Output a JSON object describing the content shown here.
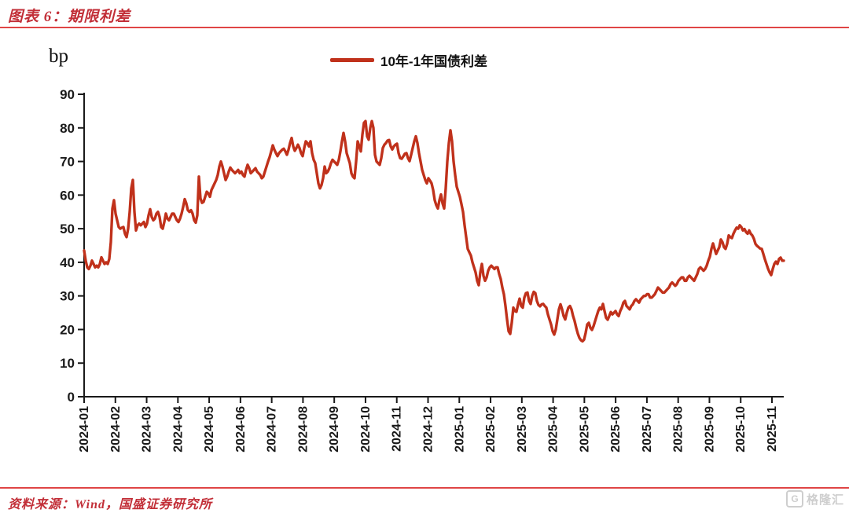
{
  "header": {
    "title": "图表 6：期限利差"
  },
  "legend": {
    "label": "10年-1年国债利差"
  },
  "footer": {
    "source": "资料来源：Wind，国盛证券研究所",
    "watermark_letter": "G",
    "watermark_text": "格隆汇"
  },
  "colors": {
    "line": "#c0311b",
    "accent_rule": "#e04545",
    "title_red": "#c22f38",
    "axis": "#1a1a1a"
  },
  "chart_data": {
    "type": "line",
    "title": "期限利差",
    "unit_label": "bp",
    "legend": [
      "10年-1年国债利差"
    ],
    "ylabel": "bp",
    "ylim": [
      0,
      90
    ],
    "grid": false,
    "legend_position": "top-center",
    "y_ticks": [
      "0",
      "10",
      "20",
      "30",
      "40",
      "50",
      "60",
      "70",
      "80",
      "90"
    ],
    "x_ticks": [
      "2024-01",
      "2024-02",
      "2024-03",
      "2024-04",
      "2024-05",
      "2024-06",
      "2024-07",
      "2024-08",
      "2024-09",
      "2024-10",
      "2024-11",
      "2024-12",
      "2025-01",
      "2025-02",
      "2025-03",
      "2025-04",
      "2025-05",
      "2025-06",
      "2025-07",
      "2025-08",
      "2025-09",
      "2025-10",
      "2025-11"
    ],
    "series": [
      {
        "name": "10年-1年国债利差",
        "values": [
          43.5,
          40.5,
          38.5,
          38,
          39,
          40.5,
          39.5,
          38.5,
          39,
          38.5,
          39.5,
          41.5,
          40.5,
          39.5,
          40,
          39.5,
          41,
          46,
          56,
          58.5,
          54.5,
          52.5,
          50.5,
          50,
          50.3,
          50.5,
          48.5,
          47.5,
          50,
          55,
          62,
          64.5,
          55,
          49.5,
          51,
          51.5,
          51,
          51.5,
          52,
          50.5,
          51.5,
          54,
          55.8,
          53.5,
          52.5,
          53,
          54.5,
          55,
          53.5,
          50.5,
          50,
          52,
          54.5,
          53,
          52.5,
          53.5,
          54.5,
          54.5,
          53.5,
          52.5,
          52,
          53,
          54.5,
          56.5,
          58.8,
          57.5,
          55.5,
          55,
          55.5,
          54.5,
          52.5,
          51.8,
          54,
          65.5,
          59,
          57.7,
          58,
          59.5,
          61,
          60.5,
          59.5,
          61.5,
          62.5,
          63.5,
          64.5,
          66,
          68.5,
          70,
          68.5,
          66.5,
          64.5,
          65.5,
          67,
          68.2,
          67.5,
          67,
          66.5,
          67,
          67.5,
          66.5,
          67,
          66,
          65.5,
          67.5,
          69,
          68,
          66.5,
          67,
          67.5,
          68,
          67,
          66.5,
          66,
          65,
          65.5,
          67,
          68.5,
          70,
          71.3,
          73,
          74.8,
          73.5,
          72.5,
          71.6,
          72.5,
          73,
          73.5,
          73.8,
          73,
          72,
          73.5,
          75.5,
          77,
          74.5,
          73.2,
          74,
          75,
          74,
          72.5,
          71.6,
          74,
          76,
          75.5,
          74.5,
          76,
          72.5,
          70.5,
          69.5,
          66.5,
          63.5,
          62,
          63,
          65,
          68.5,
          66.5,
          67,
          68,
          69.5,
          70.5,
          70,
          69.5,
          69,
          70.5,
          73,
          76,
          78.5,
          76,
          72.5,
          71,
          69.5,
          66.5,
          65.5,
          65,
          70,
          76,
          74.5,
          73,
          78,
          81.5,
          82,
          77.5,
          76.5,
          80,
          82,
          80,
          72,
          70,
          69.5,
          69,
          71,
          74,
          75,
          75.5,
          76.2,
          76.4,
          74.5,
          73.6,
          74.5,
          75,
          75.3,
          72.5,
          71,
          70.8,
          71.5,
          72.3,
          72.5,
          71,
          70.1,
          72,
          74,
          76,
          77.5,
          75.5,
          72.5,
          70,
          67.5,
          66,
          64.5,
          63.5,
          65,
          64.3,
          63.5,
          61.5,
          58.5,
          57,
          56,
          58.5,
          60.2,
          57.5,
          56,
          62,
          70,
          75.5,
          79.3,
          76,
          70,
          66,
          62.5,
          61,
          59.5,
          57.3,
          55,
          51,
          47.5,
          44,
          43,
          42,
          40,
          38.5,
          37,
          34.5,
          33.2,
          37,
          39.5,
          36,
          34.5,
          35.5,
          37.5,
          38.5,
          39,
          38.5,
          38,
          38.5,
          38.5,
          36.5,
          35,
          32.5,
          30.5,
          27,
          23,
          19.5,
          18.7,
          22,
          26.5,
          25.5,
          25.3,
          27.5,
          29.2,
          27,
          26.5,
          29.5,
          30.8,
          31,
          28.5,
          27.6,
          30,
          31.2,
          30.8,
          28.5,
          27.3,
          26.9,
          27.5,
          27.6,
          27,
          26.5,
          24.5,
          23,
          21.5,
          19.5,
          18.5,
          20,
          23,
          26,
          27.5,
          26,
          24,
          23,
          25,
          26.5,
          27,
          26,
          24,
          22.5,
          20.5,
          18.8,
          17.5,
          16.8,
          16.5,
          17,
          19,
          21.5,
          22,
          20.5,
          19.9,
          21,
          22.5,
          24,
          25.5,
          26.5,
          26,
          27.6,
          25.5,
          23.5,
          22.9,
          24,
          25.2,
          24.5,
          25,
          25.5,
          24.5,
          24,
          25.5,
          26.5,
          28,
          28.5,
          27,
          26.5,
          26,
          27,
          27.5,
          28.5,
          29,
          28.5,
          28,
          29,
          29.5,
          30,
          30,
          30.5,
          30.5,
          29.5,
          29.5,
          30,
          30.5,
          31.5,
          32.5,
          32,
          31.5,
          31,
          31,
          31.5,
          32,
          32.5,
          33.5,
          34,
          33.5,
          33,
          33.5,
          34.5,
          35,
          35.5,
          35.5,
          34.5,
          34.5,
          35.5,
          36,
          35.5,
          35,
          34.5,
          35.5,
          36.5,
          38,
          38.5,
          38,
          37.5,
          38,
          39,
          40.5,
          41.7,
          44,
          45.6,
          44,
          42.5,
          43.5,
          44.5,
          46.8,
          46,
          44.5,
          44,
          45.5,
          48,
          47.5,
          47.2,
          48.5,
          49.5,
          50.3,
          50,
          51,
          50.5,
          49.5,
          49.9,
          49,
          48.5,
          49.5,
          48.5,
          48,
          47,
          45.5,
          44.9,
          44.5,
          44.1,
          44,
          42.5,
          40.9,
          39.5,
          38.1,
          37,
          36.2,
          38,
          39.5,
          40.2,
          39.5,
          41,
          41.4,
          40.5,
          40.5
        ]
      }
    ]
  }
}
